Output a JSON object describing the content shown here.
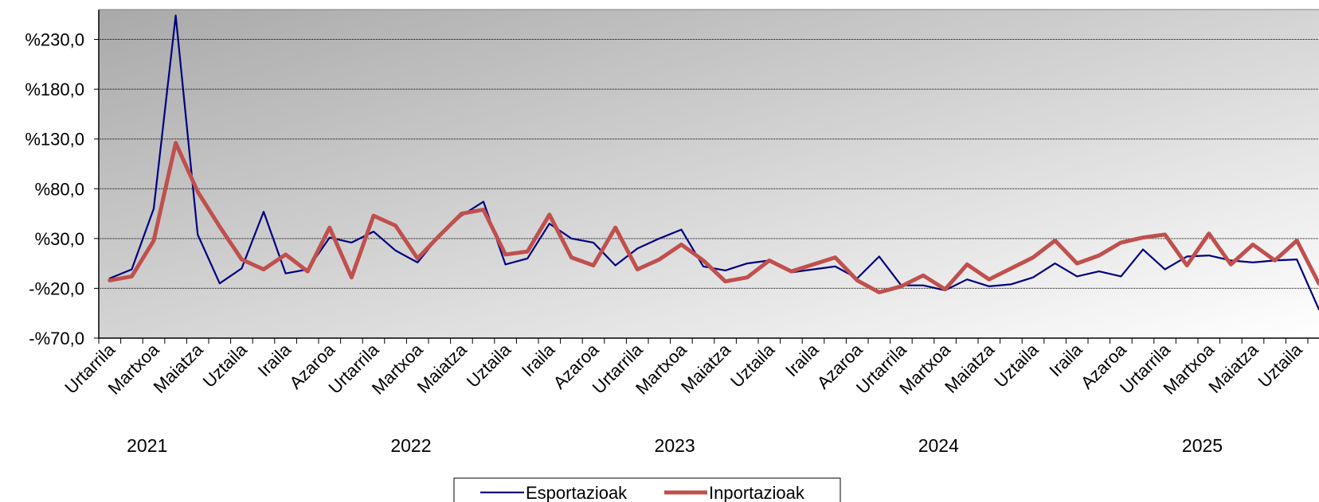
{
  "chart_data": {
    "type": "line",
    "ylim": [
      -70,
      260
    ],
    "y_ticks": [
      -70,
      -20,
      30,
      80,
      130,
      180,
      230
    ],
    "y_tick_labels": [
      "-%70,0",
      "-%20,0",
      "%30,0",
      "%80,0",
      "%130,0",
      "%180,0",
      "%230,0"
    ],
    "x_tick_labels": [
      "Urtarrila",
      "Martxoa",
      "Maiatza",
      "Uztaila",
      "Iraila",
      "Azaroa",
      "Urtarrila",
      "Martxoa",
      "Maiatza",
      "Uztaila",
      "Iraila",
      "Azaroa",
      "Urtarrila",
      "Martxoa",
      "Maiatza",
      "Uztaila",
      "Iraila",
      "Azaroa",
      "Urtarrila",
      "Martxoa",
      "Maiatza",
      "Uztaila",
      "Iraila",
      "Azaroa",
      "Urtarrila",
      "Martxoa",
      "Maiatza",
      "Uztaila"
    ],
    "years": [
      "2021",
      "2022",
      "2023",
      "2024",
      "2025"
    ],
    "grid": true,
    "legend_position": "bottom",
    "series": [
      {
        "name": "Esportazioak",
        "color": "#000080",
        "values": [
          -10,
          -1,
          60,
          254,
          34,
          -15,
          0,
          57,
          -5,
          -1,
          31,
          26,
          37,
          18,
          6,
          33,
          53,
          67,
          4,
          10,
          45,
          30,
          26,
          3,
          20,
          30,
          39,
          2,
          -2,
          5,
          8,
          -4,
          -1,
          2,
          -10,
          12,
          -17,
          -17,
          -22,
          -11,
          -18,
          -16,
          -9,
          5,
          -8,
          -3,
          -8,
          19,
          -1,
          12,
          13,
          8,
          6,
          8,
          9,
          -41
        ]
      },
      {
        "name": "Inportazioak",
        "color": "#c0504d",
        "values": [
          -12,
          -8,
          28,
          126,
          77,
          42,
          9,
          -1,
          14,
          -3,
          41,
          -9,
          53,
          43,
          10,
          33,
          55,
          59,
          14,
          17,
          54,
          11,
          3,
          41,
          -1,
          9,
          24,
          8,
          -13,
          -9,
          8,
          -3,
          4,
          11,
          -12,
          -24,
          -18,
          -7,
          -21,
          4,
          -11,
          0,
          11,
          28,
          5,
          13,
          26,
          31,
          34,
          3,
          35,
          4,
          24,
          8,
          28,
          -15
        ]
      }
    ]
  }
}
